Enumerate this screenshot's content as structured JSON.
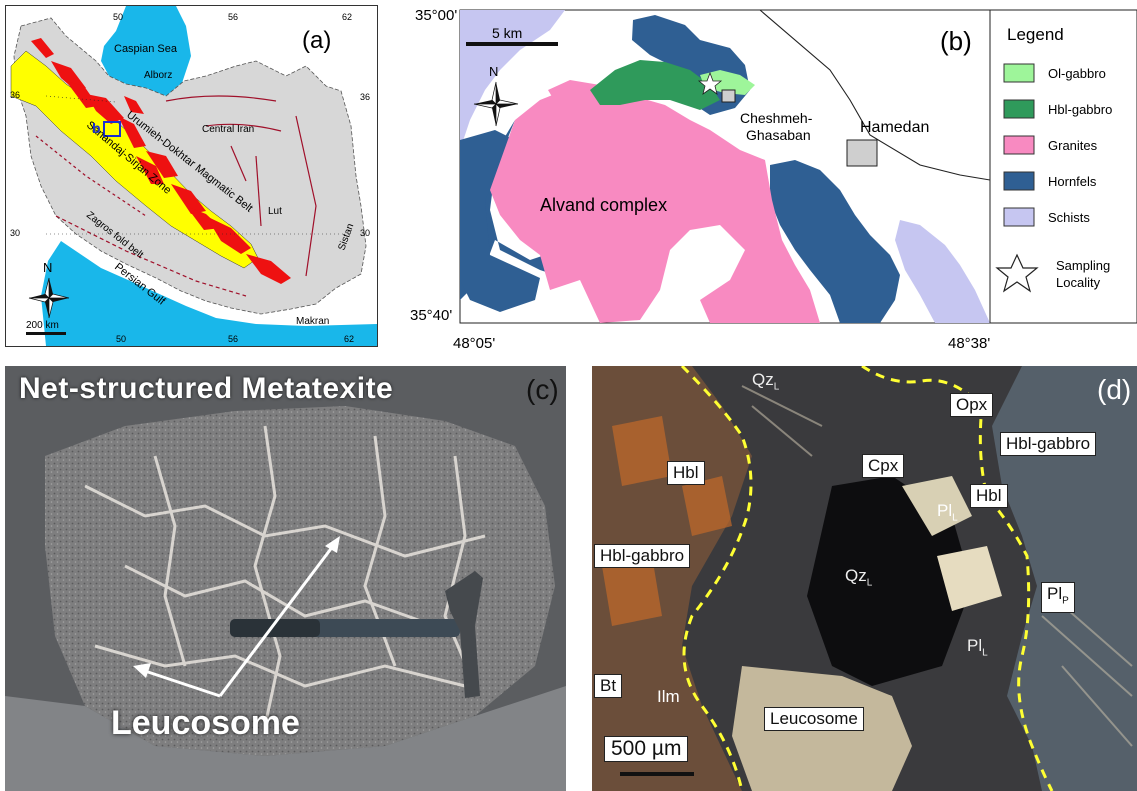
{
  "panel_a": {
    "letter": "(a)",
    "lon_ticks": [
      "50",
      "56",
      "62"
    ],
    "lon_ticks_bottom": [
      "50",
      "56",
      "62"
    ],
    "lat_ticks": [
      "36",
      "30"
    ],
    "lat_ticks_right": [
      "36",
      "30"
    ],
    "places": {
      "caspian": "Caspian Sea",
      "alborz": "Alborz",
      "central_iran": "Central Iran",
      "umdb": "Urumieh-Dokhtar Magmatic Belt",
      "ssz": "Sanandaj-Sirjan Zone",
      "lut": "Lut",
      "sistan": "Sistan",
      "zagros": "Zagros fold belt",
      "persian_gulf": "Persian Gulf",
      "makran": "Makran",
      "box": "b"
    },
    "north": "N",
    "scale": "200 km",
    "colors": {
      "sea": "#19b7ea",
      "land": "#d7d7d7",
      "ssz": "#ffff00",
      "magmatic": "#ee1111",
      "fault": "#a0102a"
    }
  },
  "panel_b": {
    "letter": "(b)",
    "lat_top": "35°00'",
    "lat_bottom": "35°40'",
    "lon_left": "48°05'",
    "lon_right": "48°38'",
    "scale": "5 km",
    "north": "N",
    "labels": {
      "cheshmeh": "Cheshmeh-",
      "ghasaban": "Ghasaban",
      "hamedan": "Hamedan",
      "alvand": "Alvand complex"
    },
    "legend_title": "Legend",
    "legend": [
      {
        "label": "Ol-gabbro",
        "color": "#9ef59a"
      },
      {
        "label": "Hbl-gabbro",
        "color": "#2f9a5b"
      },
      {
        "label": "Granites",
        "color": "#f88ac1"
      },
      {
        "label": "Hornfels",
        "color": "#2f5f93"
      },
      {
        "label": "Schists",
        "color": "#c6c6f1"
      }
    ],
    "legend_star_1": "Sampling",
    "legend_star_2": "Locality"
  },
  "panel_c": {
    "title": "Net-structured Metatexite",
    "letter": "(c)",
    "arrow_label": "Leucosome"
  },
  "panel_d": {
    "letter": "(d)",
    "labels": {
      "qz_top": "Qz",
      "opx": "Opx",
      "hbl_gabbro_r": "Hbl-gabbro",
      "cpx": "Cpx",
      "hbl_l": "Hbl",
      "hbl_r": "Hbl",
      "pl_l": "Pl",
      "hbl_gabbro_l": "Hbl-gabbro",
      "qz_c": "Qz",
      "pl_p": "Pl",
      "pl_l2": "Pl",
      "bt": "Bt",
      "ilm": "Ilm",
      "leucosome": "Leucosome",
      "scale": "500 µm",
      "sub_L": "L",
      "sub_P": "P"
    }
  }
}
